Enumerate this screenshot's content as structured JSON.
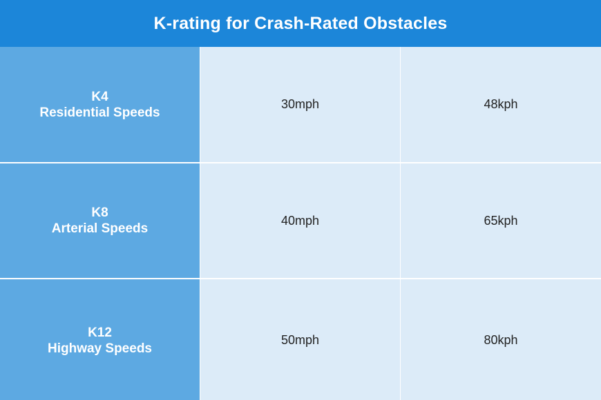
{
  "header": {
    "title": "K-rating for Crash-Rated Obstacles"
  },
  "rows": [
    {
      "code": "K4",
      "name": "Residential Speeds",
      "mph": "30mph",
      "kph": "48kph"
    },
    {
      "code": "K8",
      "name": "Arterial Speeds",
      "mph": "40mph",
      "kph": "65kph"
    },
    {
      "code": "K12",
      "name": "Highway Speeds",
      "mph": "50mph",
      "kph": "80kph"
    }
  ],
  "colors": {
    "header_bg": "#1c86d9",
    "label_bg": "#5da9e2",
    "value_bg": "#dcebf8"
  }
}
